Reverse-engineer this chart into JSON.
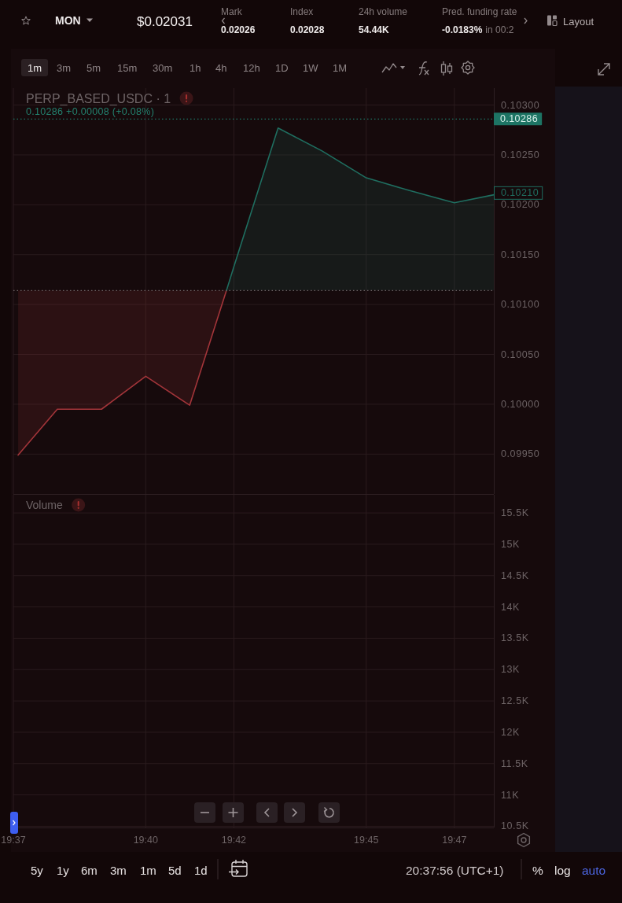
{
  "chart_data": [
    {
      "type": "other",
      "annotations": [
        "MON",
        "$0.02031",
        "Mark",
        "0.02026",
        "Index",
        "0.02028",
        "24h volume",
        "54.44K",
        "Pred. funding rate",
        "-0.0183%",
        "in 00:2",
        "Layout",
        "1m",
        "3m",
        "5m",
        "15m",
        "30m",
        "1h",
        "4h",
        "12h",
        "1D",
        "1W",
        "1M"
      ]
    },
    {
      "type": "line",
      "title": "PERP_BASED_USDC · 1",
      "subtitle": "0.10286 +0.00008 (+0.08%)",
      "xlim": [
        19.6167,
        19.7982
      ],
      "xticks": [
        {
          "value": 19.6167,
          "label": null
        },
        {
          "value": 19.6667,
          "label": null
        },
        {
          "value": 19.7,
          "label": null
        },
        {
          "value": 19.75,
          "label": null
        },
        {
          "value": 19.7833,
          "label": null
        }
      ],
      "ylim": [
        0.0991,
        0.10317
      ],
      "yticks": [
        {
          "value": 0.0995,
          "label": "0.09950"
        },
        {
          "value": 0.1,
          "label": "0.10000"
        },
        {
          "value": 0.1005,
          "label": "0.10050"
        },
        {
          "value": 0.101,
          "label": "0.10100"
        },
        {
          "value": 0.1015,
          "label": "0.10150"
        },
        {
          "value": 0.102,
          "label": "0.10200"
        },
        {
          "value": 0.1025,
          "label": "0.10250"
        },
        {
          "value": 0.103,
          "label": "0.10300"
        }
      ],
      "grid": true,
      "tick_labels": "y",
      "series": [
        {
          "color": "#a3353a",
          "x": [
            19.6185,
            19.6333,
            19.65,
            19.6667,
            19.6833,
            19.6972
          ],
          "values": [
            0.09949,
            0.09995,
            0.09995,
            0.10028,
            0.09999,
            0.10114
          ],
          "lower": [
            0.09949,
            0.09995,
            0.09995,
            0.10028,
            0.09999,
            0.10114
          ],
          "upper": [
            0.10114,
            0.10114,
            0.10114,
            0.10114,
            0.10114,
            0.10114
          ]
        },
        {
          "color": "#1f6e60",
          "x": [
            19.6972,
            19.7,
            19.7167,
            19.7333,
            19.75,
            19.7667,
            19.7833,
            19.7982
          ],
          "values": [
            0.10114,
            0.10138,
            0.10277,
            0.10254,
            0.10227,
            0.10214,
            0.10202,
            0.1021
          ],
          "lower": [
            0.10114,
            0.10114,
            0.10114,
            0.10114,
            0.10114,
            0.10114,
            0.10114,
            0.10114
          ],
          "upper": [
            0.10114,
            0.10138,
            0.10277,
            0.10254,
            0.10227,
            0.10214,
            0.10202,
            0.1021
          ]
        }
      ],
      "ref_lines": [
        {
          "axis": "y",
          "value": 0.10286,
          "label": "0.10286",
          "color": "#1d7464",
          "line_style": "dotted"
        },
        {
          "axis": "y",
          "value": 0.10114,
          "color": "#6b6163",
          "line_style": "dotted"
        }
      ],
      "annotations": [
        {
          "text": "0.10210",
          "x": 19.7982,
          "y": 0.1021
        }
      ]
    },
    {
      "type": "line",
      "title": "Volume",
      "xlim": [
        19.6167,
        19.7982
      ],
      "xticks": [
        {
          "value": 19.6167,
          "label": "19:37"
        },
        {
          "value": 19.6667,
          "label": "19:40"
        },
        {
          "value": 19.7,
          "label": "19:42"
        },
        {
          "value": 19.75,
          "label": "19:45"
        },
        {
          "value": 19.7833,
          "label": "19:47"
        }
      ],
      "ylim": [
        10480,
        15790
      ],
      "yticks": [
        {
          "value": 10500,
          "label": "10.5K"
        },
        {
          "value": 11000,
          "label": "11K"
        },
        {
          "value": 11500,
          "label": "11.5K"
        },
        {
          "value": 12000,
          "label": "12K"
        },
        {
          "value": 12500,
          "label": "12.5K"
        },
        {
          "value": 13000,
          "label": "13K"
        },
        {
          "value": 13500,
          "label": "13.5K"
        },
        {
          "value": 14000,
          "label": "14K"
        },
        {
          "value": 14500,
          "label": "14.5K"
        },
        {
          "value": 15000,
          "label": "15K"
        },
        {
          "value": 15500,
          "label": "15.5K"
        }
      ],
      "grid": true
    },
    {
      "type": "other",
      "annotations": [
        "5y",
        "1y",
        "6m",
        "3m",
        "1m",
        "5d",
        "1d",
        "20:37:56 (UTC+1)",
        "%",
        "log",
        "auto"
      ]
    }
  ]
}
